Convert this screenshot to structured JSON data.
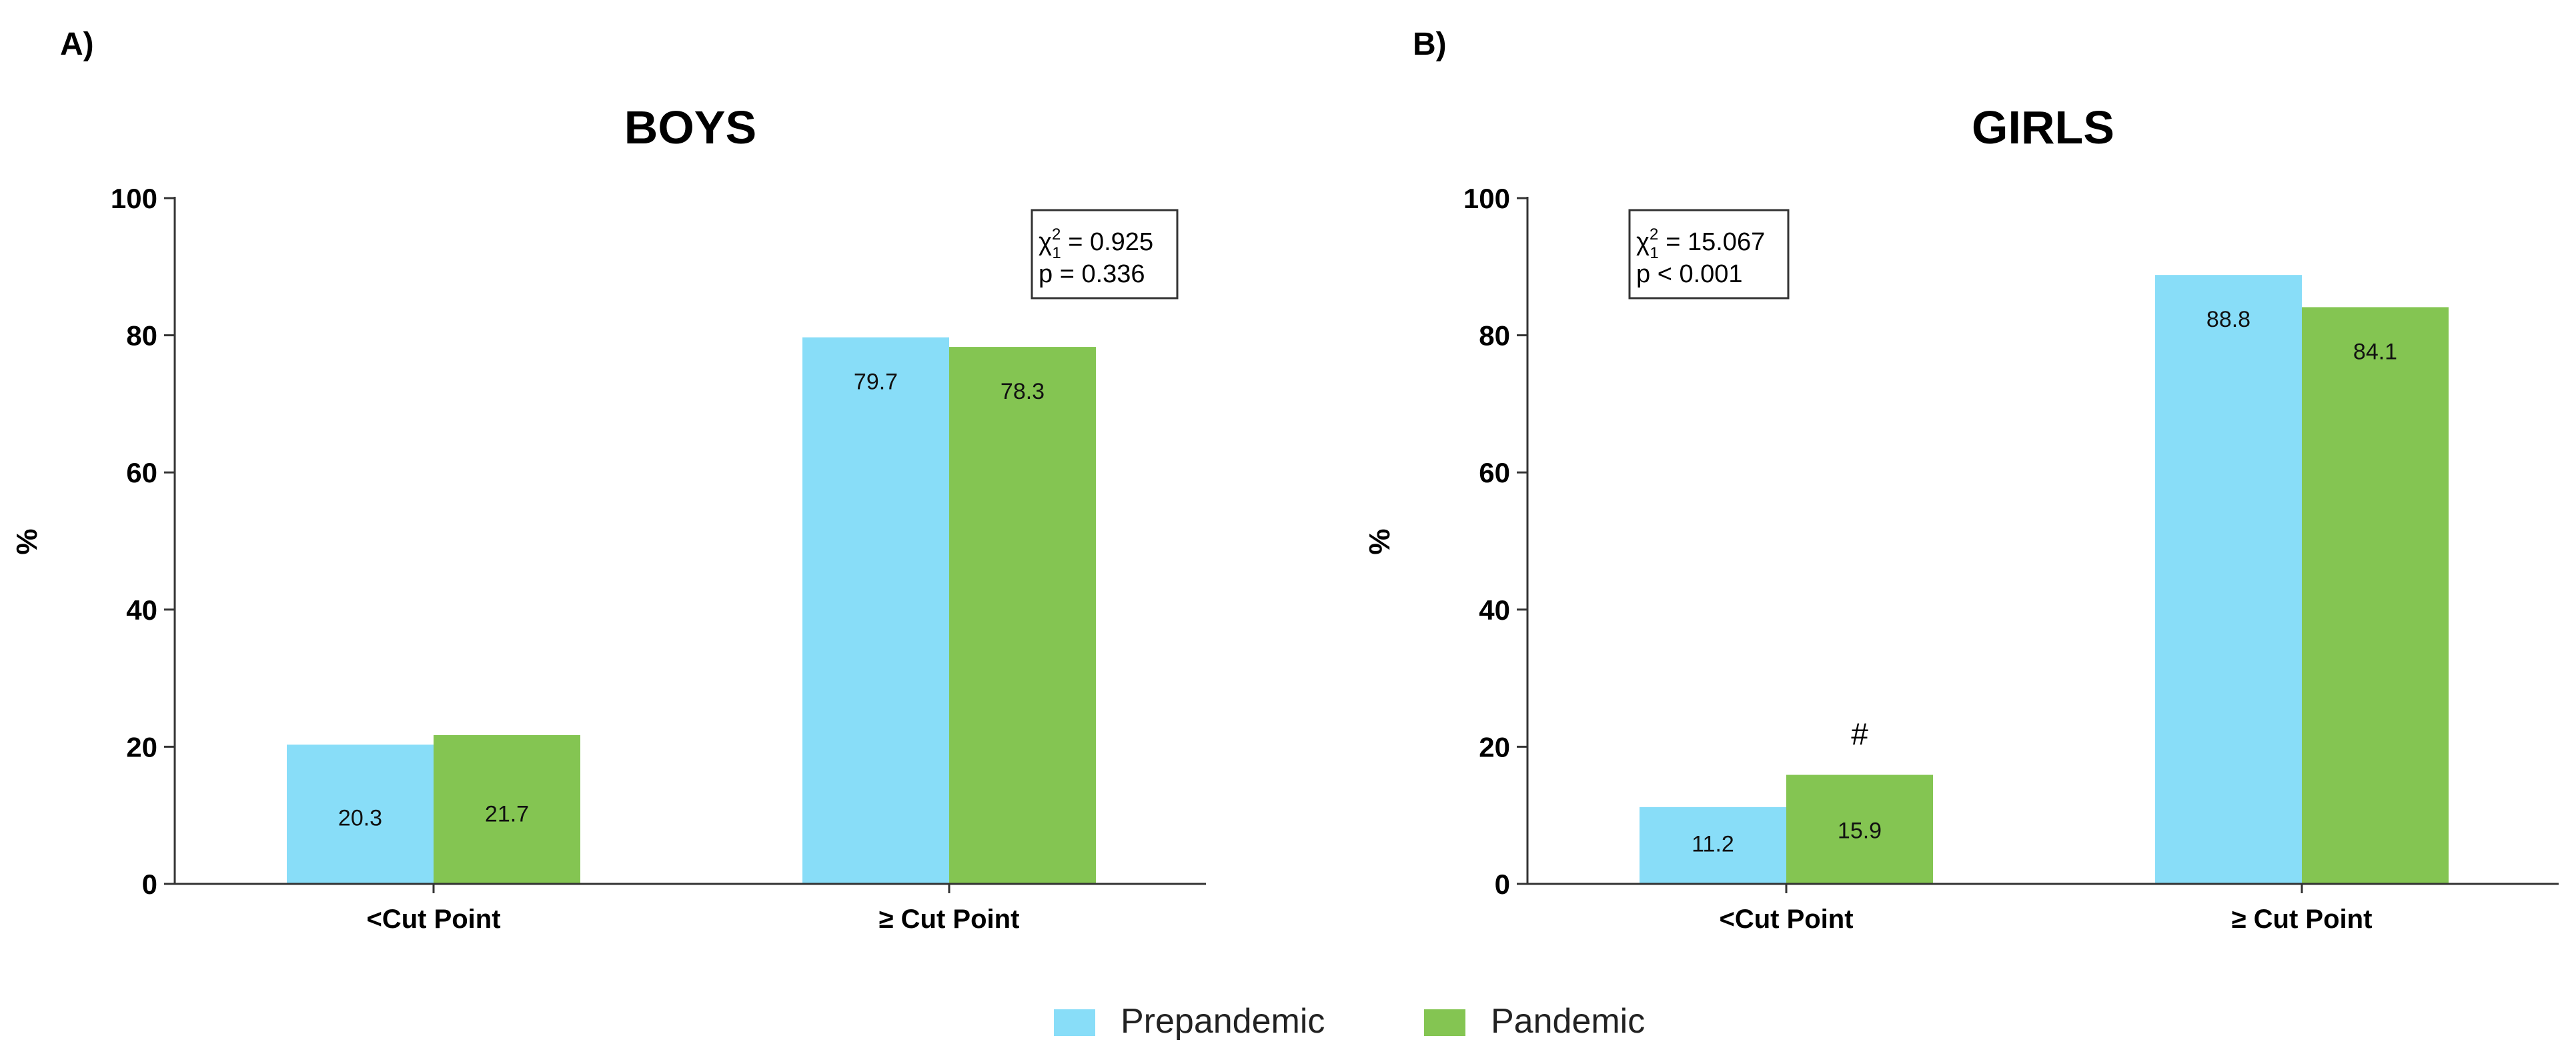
{
  "figure": {
    "legend": [
      {
        "name": "Prepandemic",
        "color": "#88DDF8"
      },
      {
        "name": "Pandemic",
        "color": "#84C552"
      }
    ]
  },
  "chart_data": [
    {
      "type": "bar",
      "panel_label": "A)",
      "title": "BOYS",
      "ylabel": "%",
      "xlabel": "",
      "ylim": [
        0,
        100
      ],
      "yticks": [
        "0",
        "20",
        "40",
        "60",
        "80",
        "100"
      ],
      "categories": [
        "<Cut Point",
        "≥ Cut Point"
      ],
      "series": [
        {
          "name": "Prepandemic",
          "color": "#88DDF8",
          "values": [
            20.3,
            79.7
          ],
          "labels": [
            "20.3",
            "79.7"
          ]
        },
        {
          "name": "Pandemic",
          "color": "#84C552",
          "values": [
            21.7,
            78.3
          ],
          "labels": [
            "21.7",
            "78.3"
          ]
        }
      ],
      "stats": {
        "chi": "χ",
        "sup": "2",
        "sub": "1",
        "chi_value": "= 0.925",
        "p_text": "p = 0.336"
      },
      "annotation": ""
    },
    {
      "type": "bar",
      "panel_label": "B)",
      "title": "GIRLS",
      "ylabel": "%",
      "xlabel": "",
      "ylim": [
        0,
        100
      ],
      "yticks": [
        "0",
        "20",
        "40",
        "60",
        "80",
        "100"
      ],
      "categories": [
        "<Cut Point",
        "≥ Cut Point"
      ],
      "series": [
        {
          "name": "Prepandemic",
          "color": "#88DDF8",
          "values": [
            11.2,
            88.8
          ],
          "labels": [
            "11.2",
            "88.8"
          ]
        },
        {
          "name": "Pandemic",
          "color": "#84C552",
          "values": [
            15.9,
            84.1
          ],
          "labels": [
            "15.9",
            "84.1"
          ]
        }
      ],
      "stats": {
        "chi": "χ",
        "sup": "2",
        "sub": "1",
        "chi_value": "= 15.067",
        "p_text": "p < 0.001"
      },
      "annotation": "#"
    }
  ]
}
